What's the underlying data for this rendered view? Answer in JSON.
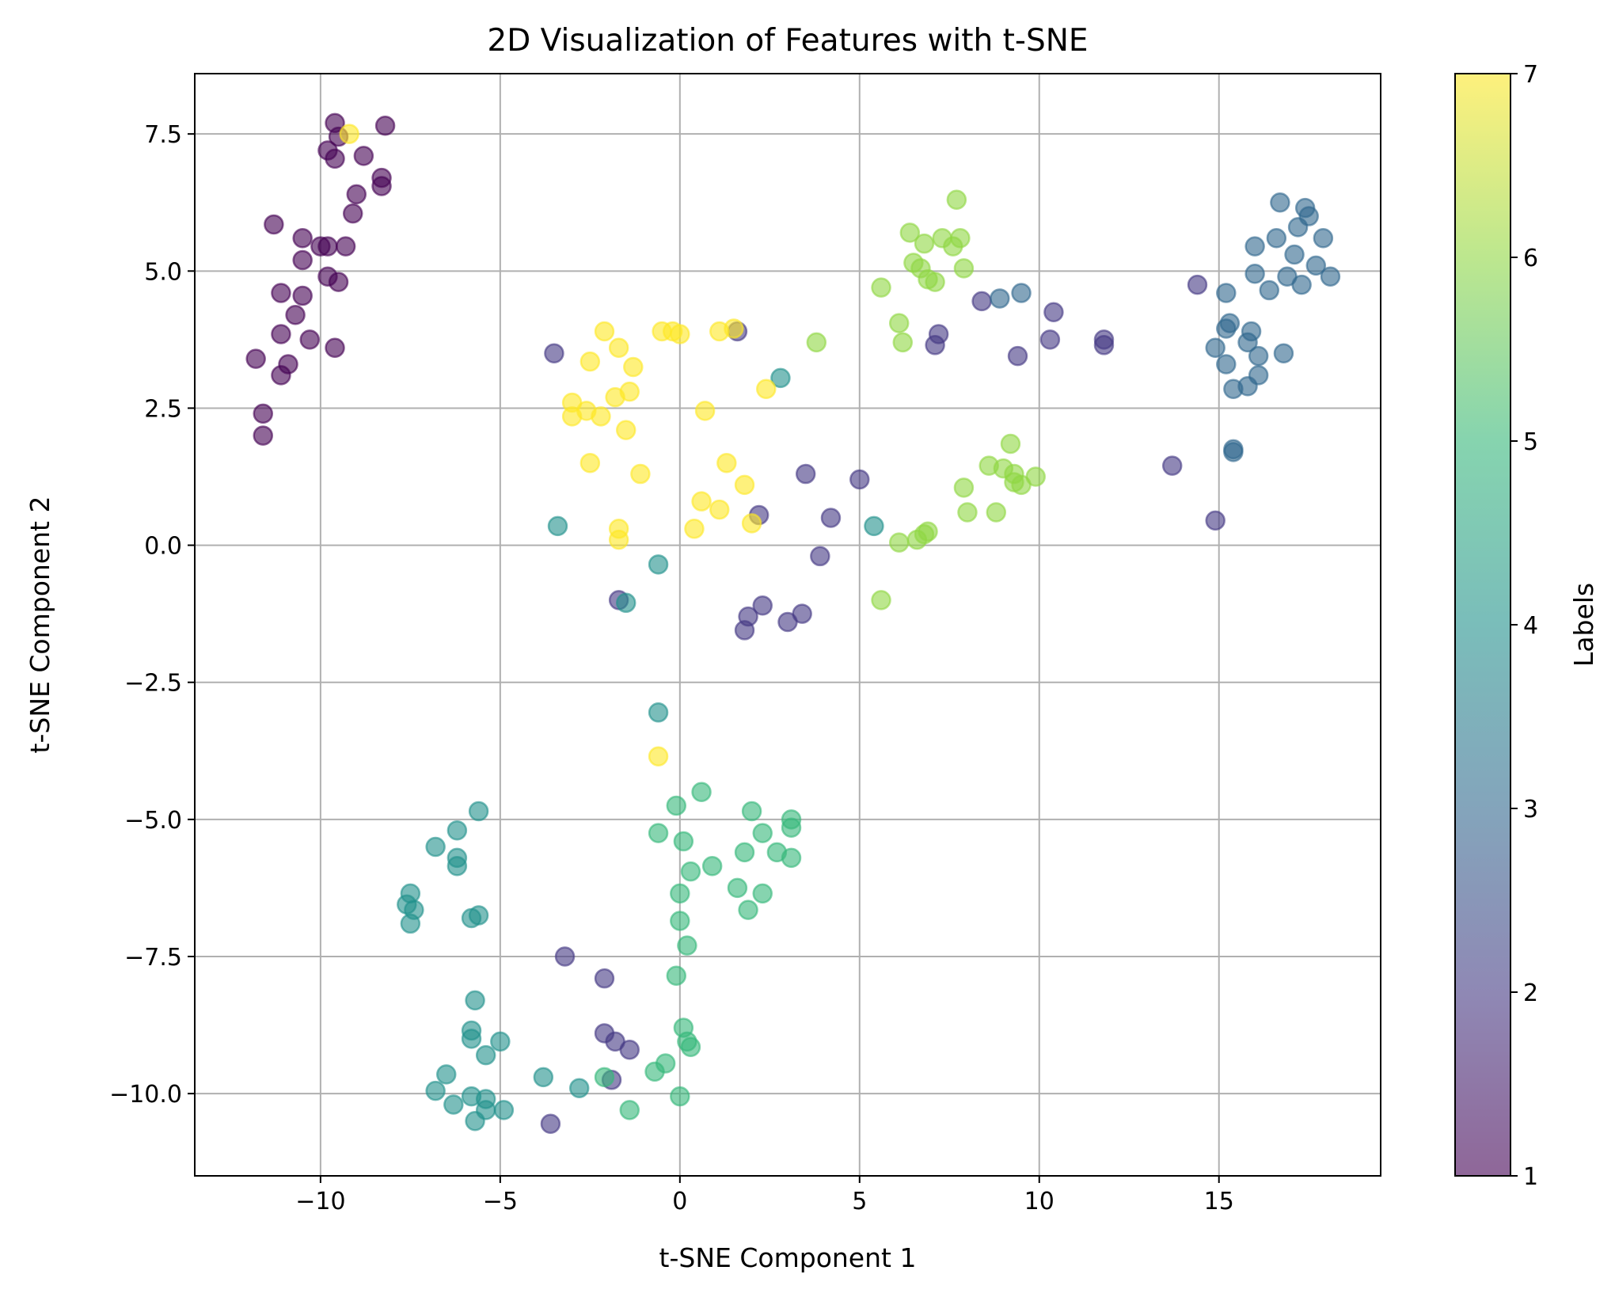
{
  "chart_data": {
    "type": "scatter",
    "title": "2D Visualization of Features with t-SNE",
    "xlabel": "t-SNE Component 1",
    "ylabel": "t-SNE Component 2",
    "xlim": [
      -13.5,
      19.5
    ],
    "ylim": [
      -11.5,
      8.6
    ],
    "grid": true,
    "x_ticks": [
      -10,
      -5,
      0,
      5,
      10,
      15
    ],
    "x_tick_labels": [
      "−10",
      "−5",
      "0",
      "5",
      "10",
      "15"
    ],
    "y_ticks": [
      -10,
      -7.5,
      -5,
      -2.5,
      0,
      2.5,
      5,
      7.5
    ],
    "y_tick_labels": [
      "−10.0",
      "−7.5",
      "−5.0",
      "−2.5",
      "0.0",
      "2.5",
      "5.0",
      "7.5"
    ],
    "colorbar": {
      "label": "Labels",
      "min": 1,
      "max": 7,
      "ticks": [
        1,
        2,
        3,
        4,
        5,
        6,
        7
      ],
      "tick_labels": [
        "1",
        "2",
        "3",
        "4",
        "5",
        "6",
        "7"
      ],
      "colors": [
        "#440154",
        "#443983",
        "#31688e",
        "#21918c",
        "#35b779",
        "#90d743",
        "#fde725"
      ]
    },
    "marker_alpha": 0.6,
    "points": [
      {
        "x": -9.6,
        "y": 7.7,
        "label": 1
      },
      {
        "x": -8.2,
        "y": 7.65,
        "label": 1
      },
      {
        "x": -9.5,
        "y": 7.45,
        "label": 1
      },
      {
        "x": -9.8,
        "y": 7.2,
        "label": 1
      },
      {
        "x": -9.6,
        "y": 7.05,
        "label": 1
      },
      {
        "x": -8.8,
        "y": 7.1,
        "label": 1
      },
      {
        "x": -8.3,
        "y": 6.7,
        "label": 1
      },
      {
        "x": -8.3,
        "y": 6.55,
        "label": 1
      },
      {
        "x": -9.0,
        "y": 6.4,
        "label": 1
      },
      {
        "x": -9.1,
        "y": 6.05,
        "label": 1
      },
      {
        "x": -11.3,
        "y": 5.85,
        "label": 1
      },
      {
        "x": -10.5,
        "y": 5.6,
        "label": 1
      },
      {
        "x": -10.0,
        "y": 5.45,
        "label": 1
      },
      {
        "x": -9.8,
        "y": 5.45,
        "label": 1
      },
      {
        "x": -9.3,
        "y": 5.45,
        "label": 1
      },
      {
        "x": -10.5,
        "y": 5.2,
        "label": 1
      },
      {
        "x": -9.8,
        "y": 4.9,
        "label": 1
      },
      {
        "x": -9.5,
        "y": 4.8,
        "label": 1
      },
      {
        "x": -11.1,
        "y": 4.6,
        "label": 1
      },
      {
        "x": -10.5,
        "y": 4.55,
        "label": 1
      },
      {
        "x": -10.7,
        "y": 4.2,
        "label": 1
      },
      {
        "x": -11.1,
        "y": 3.85,
        "label": 1
      },
      {
        "x": -10.3,
        "y": 3.75,
        "label": 1
      },
      {
        "x": -9.6,
        "y": 3.6,
        "label": 1
      },
      {
        "x": -11.8,
        "y": 3.4,
        "label": 1
      },
      {
        "x": -10.9,
        "y": 3.3,
        "label": 1
      },
      {
        "x": -11.1,
        "y": 3.1,
        "label": 1
      },
      {
        "x": -11.6,
        "y": 2.4,
        "label": 1
      },
      {
        "x": -11.6,
        "y": 2.0,
        "label": 1
      },
      {
        "x": -9.2,
        "y": 7.5,
        "label": 7
      },
      {
        "x": -3.5,
        "y": 3.5,
        "label": 2
      },
      {
        "x": 1.6,
        "y": 3.9,
        "label": 2
      },
      {
        "x": 7.2,
        "y": 3.85,
        "label": 2
      },
      {
        "x": 7.1,
        "y": 3.65,
        "label": 2
      },
      {
        "x": 8.4,
        "y": 4.45,
        "label": 2
      },
      {
        "x": 10.4,
        "y": 4.25,
        "label": 2
      },
      {
        "x": 10.3,
        "y": 3.75,
        "label": 2
      },
      {
        "x": 9.4,
        "y": 3.45,
        "label": 2
      },
      {
        "x": 11.8,
        "y": 3.75,
        "label": 2
      },
      {
        "x": 11.8,
        "y": 3.65,
        "label": 2
      },
      {
        "x": 14.4,
        "y": 4.75,
        "label": 2
      },
      {
        "x": 13.7,
        "y": 1.45,
        "label": 2
      },
      {
        "x": 14.9,
        "y": 0.45,
        "label": 2
      },
      {
        "x": 3.5,
        "y": 1.3,
        "label": 2
      },
      {
        "x": 5.0,
        "y": 1.2,
        "label": 2
      },
      {
        "x": 2.2,
        "y": 0.55,
        "label": 2
      },
      {
        "x": 4.2,
        "y": 0.5,
        "label": 2
      },
      {
        "x": 3.9,
        "y": -0.2,
        "label": 2
      },
      {
        "x": -1.7,
        "y": -1.0,
        "label": 2
      },
      {
        "x": 2.3,
        "y": -1.1,
        "label": 2
      },
      {
        "x": 1.9,
        "y": -1.3,
        "label": 2
      },
      {
        "x": 3.4,
        "y": -1.25,
        "label": 2
      },
      {
        "x": 3.0,
        "y": -1.4,
        "label": 2
      },
      {
        "x": 1.8,
        "y": -1.55,
        "label": 2
      },
      {
        "x": -3.2,
        "y": -7.5,
        "label": 2
      },
      {
        "x": -2.1,
        "y": -7.9,
        "label": 2
      },
      {
        "x": -2.1,
        "y": -8.9,
        "label": 2
      },
      {
        "x": -1.8,
        "y": -9.05,
        "label": 2
      },
      {
        "x": -1.4,
        "y": -9.2,
        "label": 2
      },
      {
        "x": -1.9,
        "y": -9.75,
        "label": 2
      },
      {
        "x": -3.6,
        "y": -10.55,
        "label": 2
      },
      {
        "x": 8.9,
        "y": 4.5,
        "label": 3
      },
      {
        "x": 9.5,
        "y": 4.6,
        "label": 3
      },
      {
        "x": 16.7,
        "y": 6.25,
        "label": 3
      },
      {
        "x": 17.4,
        "y": 6.15,
        "label": 3
      },
      {
        "x": 17.5,
        "y": 6.0,
        "label": 3
      },
      {
        "x": 17.2,
        "y": 5.8,
        "label": 3
      },
      {
        "x": 16.6,
        "y": 5.6,
        "label": 3
      },
      {
        "x": 17.9,
        "y": 5.6,
        "label": 3
      },
      {
        "x": 16.0,
        "y": 5.45,
        "label": 3
      },
      {
        "x": 17.1,
        "y": 5.3,
        "label": 3
      },
      {
        "x": 17.7,
        "y": 5.1,
        "label": 3
      },
      {
        "x": 16.0,
        "y": 4.95,
        "label": 3
      },
      {
        "x": 16.9,
        "y": 4.9,
        "label": 3
      },
      {
        "x": 18.1,
        "y": 4.9,
        "label": 3
      },
      {
        "x": 17.3,
        "y": 4.75,
        "label": 3
      },
      {
        "x": 16.4,
        "y": 4.65,
        "label": 3
      },
      {
        "x": 15.2,
        "y": 4.6,
        "label": 3
      },
      {
        "x": 15.3,
        "y": 4.05,
        "label": 3
      },
      {
        "x": 15.2,
        "y": 3.95,
        "label": 3
      },
      {
        "x": 15.9,
        "y": 3.9,
        "label": 3
      },
      {
        "x": 15.8,
        "y": 3.7,
        "label": 3
      },
      {
        "x": 14.9,
        "y": 3.6,
        "label": 3
      },
      {
        "x": 16.8,
        "y": 3.5,
        "label": 3
      },
      {
        "x": 16.1,
        "y": 3.45,
        "label": 3
      },
      {
        "x": 15.2,
        "y": 3.3,
        "label": 3
      },
      {
        "x": 16.1,
        "y": 3.1,
        "label": 3
      },
      {
        "x": 15.8,
        "y": 2.9,
        "label": 3
      },
      {
        "x": 15.4,
        "y": 2.85,
        "label": 3
      },
      {
        "x": 15.4,
        "y": 1.75,
        "label": 3
      },
      {
        "x": 15.4,
        "y": 1.7,
        "label": 3
      },
      {
        "x": 2.8,
        "y": 3.05,
        "label": 4
      },
      {
        "x": -3.4,
        "y": 0.35,
        "label": 4
      },
      {
        "x": 5.4,
        "y": 0.35,
        "label": 4
      },
      {
        "x": -0.6,
        "y": -0.35,
        "label": 4
      },
      {
        "x": -1.5,
        "y": -1.05,
        "label": 4
      },
      {
        "x": -0.6,
        "y": -3.05,
        "label": 4
      },
      {
        "x": -5.6,
        "y": -4.85,
        "label": 4
      },
      {
        "x": -6.2,
        "y": -5.2,
        "label": 4
      },
      {
        "x": -6.8,
        "y": -5.5,
        "label": 4
      },
      {
        "x": -6.2,
        "y": -5.7,
        "label": 4
      },
      {
        "x": -6.2,
        "y": -5.85,
        "label": 4
      },
      {
        "x": -7.5,
        "y": -6.35,
        "label": 4
      },
      {
        "x": -7.6,
        "y": -6.55,
        "label": 4
      },
      {
        "x": -7.4,
        "y": -6.65,
        "label": 4
      },
      {
        "x": -5.8,
        "y": -6.8,
        "label": 4
      },
      {
        "x": -5.6,
        "y": -6.75,
        "label": 4
      },
      {
        "x": -7.5,
        "y": -6.9,
        "label": 4
      },
      {
        "x": -5.7,
        "y": -8.3,
        "label": 4
      },
      {
        "x": -5.8,
        "y": -8.85,
        "label": 4
      },
      {
        "x": -5.8,
        "y": -9.0,
        "label": 4
      },
      {
        "x": -5.0,
        "y": -9.05,
        "label": 4
      },
      {
        "x": -5.4,
        "y": -9.3,
        "label": 4
      },
      {
        "x": -6.5,
        "y": -9.65,
        "label": 4
      },
      {
        "x": -3.8,
        "y": -9.7,
        "label": 4
      },
      {
        "x": -6.8,
        "y": -9.95,
        "label": 4
      },
      {
        "x": -2.8,
        "y": -9.9,
        "label": 4
      },
      {
        "x": -5.8,
        "y": -10.05,
        "label": 4
      },
      {
        "x": -5.4,
        "y": -10.1,
        "label": 4
      },
      {
        "x": -6.3,
        "y": -10.2,
        "label": 4
      },
      {
        "x": -5.4,
        "y": -10.3,
        "label": 4
      },
      {
        "x": -4.9,
        "y": -10.3,
        "label": 4
      },
      {
        "x": -5.7,
        "y": -10.5,
        "label": 4
      },
      {
        "x": 0.6,
        "y": -4.5,
        "label": 5
      },
      {
        "x": -0.1,
        "y": -4.75,
        "label": 5
      },
      {
        "x": 2.0,
        "y": -4.85,
        "label": 5
      },
      {
        "x": 3.1,
        "y": -5.0,
        "label": 5
      },
      {
        "x": 3.1,
        "y": -5.15,
        "label": 5
      },
      {
        "x": -0.6,
        "y": -5.25,
        "label": 5
      },
      {
        "x": 2.3,
        "y": -5.25,
        "label": 5
      },
      {
        "x": 0.1,
        "y": -5.4,
        "label": 5
      },
      {
        "x": 1.8,
        "y": -5.6,
        "label": 5
      },
      {
        "x": 2.7,
        "y": -5.6,
        "label": 5
      },
      {
        "x": 3.1,
        "y": -5.7,
        "label": 5
      },
      {
        "x": 0.9,
        "y": -5.85,
        "label": 5
      },
      {
        "x": 0.3,
        "y": -5.95,
        "label": 5
      },
      {
        "x": 1.6,
        "y": -6.25,
        "label": 5
      },
      {
        "x": 2.3,
        "y": -6.35,
        "label": 5
      },
      {
        "x": 0.0,
        "y": -6.35,
        "label": 5
      },
      {
        "x": 1.9,
        "y": -6.65,
        "label": 5
      },
      {
        "x": 0.0,
        "y": -6.85,
        "label": 5
      },
      {
        "x": 0.2,
        "y": -7.3,
        "label": 5
      },
      {
        "x": -0.1,
        "y": -7.85,
        "label": 5
      },
      {
        "x": 0.1,
        "y": -8.8,
        "label": 5
      },
      {
        "x": 0.2,
        "y": -9.05,
        "label": 5
      },
      {
        "x": 0.3,
        "y": -9.15,
        "label": 5
      },
      {
        "x": -0.4,
        "y": -9.45,
        "label": 5
      },
      {
        "x": -0.7,
        "y": -9.6,
        "label": 5
      },
      {
        "x": -2.1,
        "y": -9.7,
        "label": 5
      },
      {
        "x": 0.0,
        "y": -10.05,
        "label": 5
      },
      {
        "x": -1.4,
        "y": -10.3,
        "label": 5
      },
      {
        "x": 7.7,
        "y": 6.3,
        "label": 6
      },
      {
        "x": 6.4,
        "y": 5.7,
        "label": 6
      },
      {
        "x": 7.3,
        "y": 5.6,
        "label": 6
      },
      {
        "x": 7.8,
        "y": 5.6,
        "label": 6
      },
      {
        "x": 6.8,
        "y": 5.5,
        "label": 6
      },
      {
        "x": 7.6,
        "y": 5.45,
        "label": 6
      },
      {
        "x": 6.5,
        "y": 5.15,
        "label": 6
      },
      {
        "x": 6.7,
        "y": 5.05,
        "label": 6
      },
      {
        "x": 7.9,
        "y": 5.05,
        "label": 6
      },
      {
        "x": 6.9,
        "y": 4.85,
        "label": 6
      },
      {
        "x": 7.1,
        "y": 4.8,
        "label": 6
      },
      {
        "x": 5.6,
        "y": 4.7,
        "label": 6
      },
      {
        "x": 6.1,
        "y": 4.05,
        "label": 6
      },
      {
        "x": 3.8,
        "y": 3.7,
        "label": 6
      },
      {
        "x": 6.2,
        "y": 3.7,
        "label": 6
      },
      {
        "x": 9.2,
        "y": 1.85,
        "label": 6
      },
      {
        "x": 8.6,
        "y": 1.45,
        "label": 6
      },
      {
        "x": 9.0,
        "y": 1.4,
        "label": 6
      },
      {
        "x": 9.3,
        "y": 1.3,
        "label": 6
      },
      {
        "x": 9.9,
        "y": 1.25,
        "label": 6
      },
      {
        "x": 9.3,
        "y": 1.15,
        "label": 6
      },
      {
        "x": 9.5,
        "y": 1.1,
        "label": 6
      },
      {
        "x": 7.9,
        "y": 1.05,
        "label": 6
      },
      {
        "x": 8.0,
        "y": 0.6,
        "label": 6
      },
      {
        "x": 8.8,
        "y": 0.6,
        "label": 6
      },
      {
        "x": 6.9,
        "y": 0.25,
        "label": 6
      },
      {
        "x": 6.8,
        "y": 0.2,
        "label": 6
      },
      {
        "x": 6.6,
        "y": 0.1,
        "label": 6
      },
      {
        "x": 6.1,
        "y": 0.05,
        "label": 6
      },
      {
        "x": 5.6,
        "y": -1.0,
        "label": 6
      },
      {
        "x": -0.5,
        "y": 3.9,
        "label": 7
      },
      {
        "x": -0.2,
        "y": 3.9,
        "label": 7
      },
      {
        "x": 0.0,
        "y": 3.85,
        "label": 7
      },
      {
        "x": 1.1,
        "y": 3.9,
        "label": 7
      },
      {
        "x": 1.5,
        "y": 3.95,
        "label": 7
      },
      {
        "x": -2.1,
        "y": 3.9,
        "label": 7
      },
      {
        "x": -1.7,
        "y": 3.6,
        "label": 7
      },
      {
        "x": -2.5,
        "y": 3.35,
        "label": 7
      },
      {
        "x": -1.3,
        "y": 3.25,
        "label": 7
      },
      {
        "x": 2.4,
        "y": 2.85,
        "label": 7
      },
      {
        "x": -1.4,
        "y": 2.8,
        "label": 7
      },
      {
        "x": -1.8,
        "y": 2.7,
        "label": 7
      },
      {
        "x": -3.0,
        "y": 2.6,
        "label": 7
      },
      {
        "x": 0.7,
        "y": 2.45,
        "label": 7
      },
      {
        "x": -2.6,
        "y": 2.45,
        "label": 7
      },
      {
        "x": -2.2,
        "y": 2.35,
        "label": 7
      },
      {
        "x": -3.0,
        "y": 2.35,
        "label": 7
      },
      {
        "x": -1.5,
        "y": 2.1,
        "label": 7
      },
      {
        "x": -2.5,
        "y": 1.5,
        "label": 7
      },
      {
        "x": 1.3,
        "y": 1.5,
        "label": 7
      },
      {
        "x": -1.1,
        "y": 1.3,
        "label": 7
      },
      {
        "x": 1.8,
        "y": 1.1,
        "label": 7
      },
      {
        "x": 0.6,
        "y": 0.8,
        "label": 7
      },
      {
        "x": 1.1,
        "y": 0.65,
        "label": 7
      },
      {
        "x": 2.0,
        "y": 0.4,
        "label": 7
      },
      {
        "x": 0.4,
        "y": 0.3,
        "label": 7
      },
      {
        "x": -1.7,
        "y": 0.3,
        "label": 7
      },
      {
        "x": -1.7,
        "y": 0.1,
        "label": 7
      },
      {
        "x": -0.6,
        "y": -3.85,
        "label": 7
      }
    ]
  }
}
